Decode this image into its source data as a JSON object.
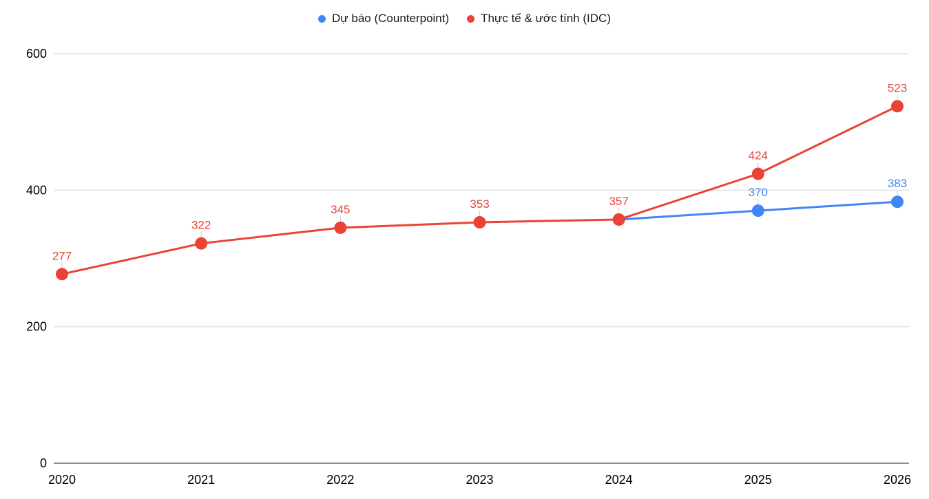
{
  "chart_data": {
    "type": "line",
    "title": "",
    "xlabel": "",
    "ylabel": "",
    "categories": [
      "2020",
      "2021",
      "2022",
      "2023",
      "2024",
      "2025",
      "2026"
    ],
    "series": [
      {
        "name": "Dự báo (Counterpoint)",
        "color": "#4285F4",
        "values": [
          null,
          null,
          null,
          null,
          357,
          370,
          383
        ],
        "hide_label_at": [
          4
        ]
      },
      {
        "name": "Thực tế & ước tính (IDC)",
        "color": "#EA4335",
        "values": [
          277,
          322,
          345,
          353,
          357,
          424,
          523
        ],
        "hide_label_at": []
      }
    ],
    "ylim": [
      0,
      600
    ],
    "yticks": [
      0,
      200,
      400,
      600
    ],
    "grid": true,
    "legend_position": "top",
    "colors": {
      "grid": "#e6e6e6",
      "axis": "#8f8f8f",
      "tick_text": "#000000",
      "leader": "#cccccc",
      "background": "#ffffff"
    }
  }
}
